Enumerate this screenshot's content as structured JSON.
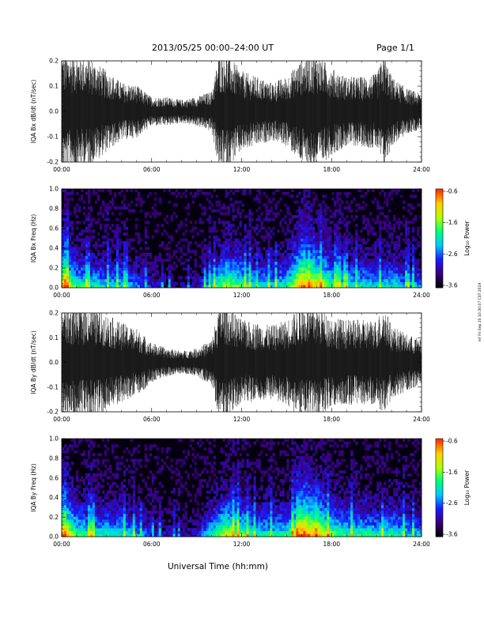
{
  "header": {
    "title": "2013/05/25  00:00–24:00 UT",
    "page": "Page 1/1"
  },
  "xaxis": {
    "title": "Universal Time (hh:mm)",
    "tick_labels": [
      "00:00",
      "06:00",
      "12:00",
      "18:00",
      "24:00"
    ]
  },
  "side_note": "mf Fri Sep 20 10:30:07 CST 2019",
  "colorbar": {
    "title": "Log₁₀ Power",
    "tick_labels": [
      "-0.6",
      "-1.6",
      "-2.6",
      "-3.6"
    ],
    "colors": [
      "#000000",
      "#3a007a",
      "#1a1aff",
      "#00c8ff",
      "#00ff7a",
      "#b4ff00",
      "#ffd000",
      "#ff3000"
    ]
  },
  "chart_data": [
    {
      "type": "line",
      "title": "",
      "xlabel": "",
      "ylabel": "IQA Bx dB/dt (nT/sec)",
      "xlim": [
        0,
        24
      ],
      "ylim": [
        -0.2,
        0.2
      ],
      "ytick_labels": [
        "-0.2",
        "-0.1",
        "0.0",
        "0.1",
        "0.2"
      ],
      "envelope_hours": [
        0,
        1,
        2,
        3,
        4,
        5,
        6,
        7,
        8,
        9,
        10,
        10.5,
        11,
        12,
        13,
        14,
        15,
        16,
        16.5,
        17,
        18,
        19,
        20,
        21,
        21.5,
        22,
        23,
        24
      ],
      "envelope_amplitude": [
        0.2,
        0.2,
        0.18,
        0.14,
        0.1,
        0.09,
        0.05,
        0.05,
        0.04,
        0.05,
        0.07,
        0.2,
        0.2,
        0.14,
        0.12,
        0.1,
        0.12,
        0.18,
        0.2,
        0.2,
        0.15,
        0.12,
        0.12,
        0.13,
        0.2,
        0.12,
        0.08,
        0.06
      ]
    },
    {
      "type": "heatmap",
      "title": "",
      "xlabel": "",
      "ylabel": "IQA Bx Freq (Hz)",
      "xlim": [
        0,
        24
      ],
      "ylim": [
        0.0,
        1.0
      ],
      "ytick_labels": [
        "0.0",
        "0.2",
        "0.4",
        "0.6",
        "0.8",
        "1.0"
      ],
      "zlim": [
        -3.6,
        -0.6
      ],
      "activity_hours": [
        0,
        1,
        2,
        3,
        4,
        5,
        6,
        7,
        8,
        9,
        10,
        11,
        12,
        13,
        14,
        15,
        16,
        17,
        18,
        19,
        20,
        21,
        22,
        23,
        24
      ],
      "activity_level": [
        0.9,
        0.55,
        0.5,
        0.45,
        0.45,
        0.35,
        0.2,
        0.15,
        0.12,
        0.15,
        0.45,
        0.7,
        0.6,
        0.45,
        0.45,
        0.5,
        0.95,
        0.85,
        0.6,
        0.5,
        0.5,
        0.45,
        0.5,
        0.4,
        0.35
      ]
    },
    {
      "type": "line",
      "title": "",
      "xlabel": "",
      "ylabel": "IQA By dB/dt (nT/sec)",
      "xlim": [
        0,
        24
      ],
      "ylim": [
        -0.2,
        0.2
      ],
      "ytick_labels": [
        "-0.2",
        "-0.1",
        "0.0",
        "0.1",
        "0.2"
      ],
      "envelope_hours": [
        0,
        1,
        2,
        3,
        4,
        5,
        6,
        7,
        8,
        9,
        10,
        10.5,
        11,
        12,
        13,
        14,
        15,
        16,
        16.5,
        17,
        18,
        19,
        20,
        21,
        21.5,
        22,
        23,
        24
      ],
      "envelope_amplitude": [
        0.2,
        0.2,
        0.2,
        0.17,
        0.14,
        0.12,
        0.07,
        0.05,
        0.04,
        0.05,
        0.08,
        0.2,
        0.2,
        0.15,
        0.14,
        0.13,
        0.15,
        0.2,
        0.2,
        0.2,
        0.16,
        0.15,
        0.15,
        0.15,
        0.2,
        0.13,
        0.1,
        0.08
      ]
    },
    {
      "type": "heatmap",
      "title": "",
      "xlabel": "",
      "ylabel": "IQA By Freq (Hz)",
      "xlim": [
        0,
        24
      ],
      "ylim": [
        0.0,
        1.0
      ],
      "ytick_labels": [
        "0.0",
        "0.2",
        "0.4",
        "0.6",
        "0.8",
        "1.0"
      ],
      "zlim": [
        -3.6,
        -0.6
      ],
      "activity_hours": [
        0,
        1,
        2,
        3,
        4,
        5,
        6,
        7,
        8,
        9,
        10,
        11,
        12,
        13,
        14,
        15,
        16,
        17,
        18,
        19,
        20,
        21,
        22,
        23,
        24
      ],
      "activity_level": [
        0.95,
        0.6,
        0.55,
        0.5,
        0.5,
        0.4,
        0.25,
        0.18,
        0.15,
        0.18,
        0.5,
        0.75,
        0.65,
        0.5,
        0.5,
        0.55,
        0.95,
        0.9,
        0.65,
        0.55,
        0.55,
        0.5,
        0.55,
        0.45,
        0.4
      ]
    }
  ]
}
